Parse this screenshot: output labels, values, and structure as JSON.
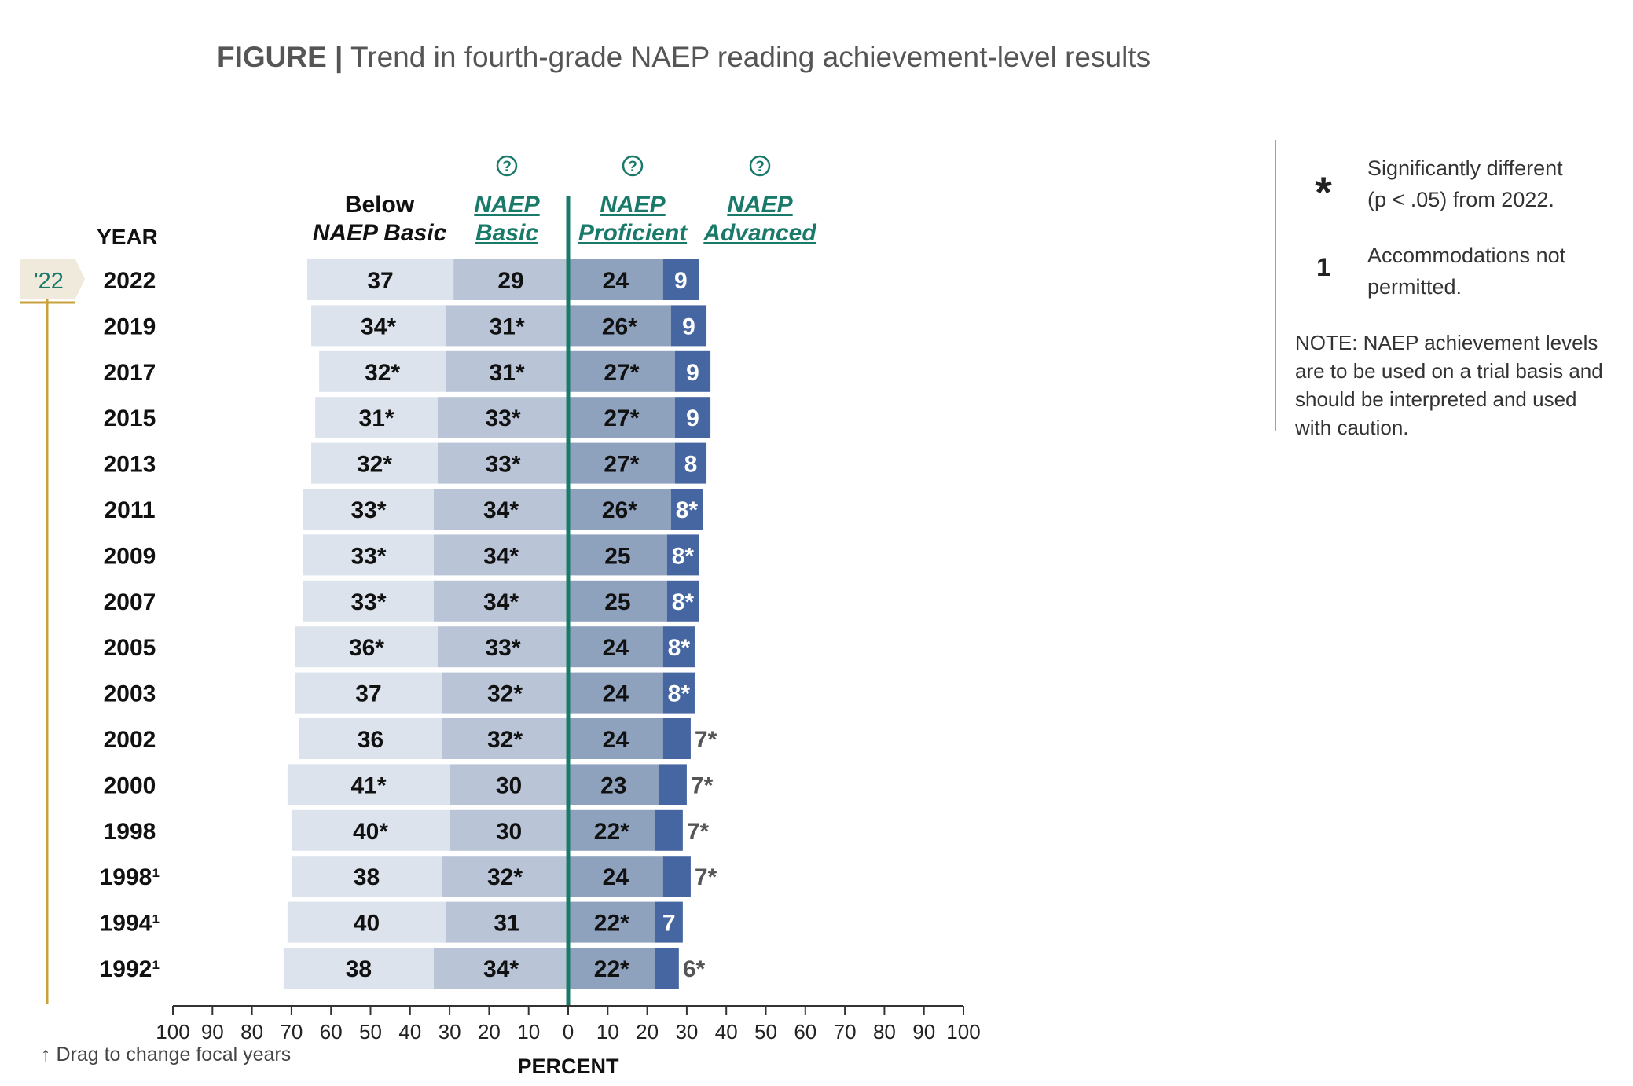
{
  "title_lead": "FIGURE |",
  "title_rest": "Trend in fourth-grade NAEP reading achievement-level results",
  "help_icon": "question-circle-icon",
  "focal_tag": "'22",
  "drag_hint": "↑ Drag to change focal years",
  "legend": {
    "sig_symbol": "*",
    "sig_text_1": "Significantly different",
    "sig_text_2": "(p < .05) from 2022.",
    "acc_symbol": "1",
    "acc_text_1": "Accommodations not",
    "acc_text_2": "permitted.",
    "note": "NOTE: NAEP achievement levels are to be used on a trial basis and should be interpreted and used with caution."
  },
  "colors": {
    "below_basic": "#dde3ec",
    "basic": "#b9c5d7",
    "proficient": "#8ea1bd",
    "advanced": "#4566a1",
    "axis_line": "#1a7a6a",
    "link": "#1a7a6a",
    "focal_gold": "#c9a13b"
  },
  "chart_data": {
    "type": "bar",
    "orientation": "horizontal-diverging",
    "year_header": "YEAR",
    "xlabel": "PERCENT",
    "xlim": [
      -100,
      100
    ],
    "xticks": [
      "100",
      "90",
      "80",
      "70",
      "60",
      "50",
      "40",
      "30",
      "20",
      "10",
      "0",
      "10",
      "20",
      "30",
      "40",
      "50",
      "60",
      "70",
      "80",
      "90",
      "100"
    ],
    "column_headers": [
      {
        "line1": "Below",
        "line2": "NAEP Basic",
        "link": false
      },
      {
        "line1": "NAEP",
        "line2": "Basic",
        "link": true
      },
      {
        "line1": "NAEP",
        "line2": "Proficient",
        "link": true
      },
      {
        "line1": "NAEP",
        "line2": "Advanced",
        "link": true
      }
    ],
    "categories": [
      "2022",
      "2019",
      "2017",
      "2015",
      "2013",
      "2011",
      "2009",
      "2007",
      "2005",
      "2003",
      "2002",
      "2000",
      "1998",
      "1998¹",
      "1994¹",
      "1992¹"
    ],
    "series": [
      {
        "name": "Below NAEP Basic",
        "side": "left",
        "values": [
          37,
          34,
          32,
          31,
          32,
          33,
          33,
          33,
          36,
          37,
          36,
          41,
          40,
          38,
          40,
          38
        ],
        "labels": [
          "37",
          "34*",
          "32*",
          "31*",
          "32*",
          "33*",
          "33*",
          "33*",
          "36*",
          "37",
          "36",
          "41*",
          "40*",
          "38",
          "40",
          "38"
        ]
      },
      {
        "name": "NAEP Basic",
        "side": "left",
        "values": [
          29,
          31,
          31,
          33,
          33,
          34,
          34,
          34,
          33,
          32,
          32,
          30,
          30,
          32,
          31,
          34
        ],
        "labels": [
          "29",
          "31*",
          "31*",
          "33*",
          "33*",
          "34*",
          "34*",
          "34*",
          "33*",
          "32*",
          "32*",
          "30",
          "30",
          "32*",
          "31",
          "34*"
        ]
      },
      {
        "name": "NAEP Proficient",
        "side": "right",
        "values": [
          24,
          26,
          27,
          27,
          27,
          26,
          25,
          25,
          24,
          24,
          24,
          23,
          22,
          24,
          22,
          22
        ],
        "labels": [
          "24",
          "26*",
          "27*",
          "27*",
          "27*",
          "26*",
          "25",
          "25",
          "24",
          "24",
          "24",
          "23",
          "22*",
          "24",
          "22*",
          "22*"
        ]
      },
      {
        "name": "NAEP Advanced",
        "side": "right",
        "values": [
          9,
          9,
          9,
          9,
          8,
          8,
          8,
          8,
          8,
          8,
          7,
          7,
          7,
          7,
          7,
          6
        ],
        "labels": [
          "9",
          "9",
          "9",
          "9",
          "8",
          "8*",
          "8*",
          "8*",
          "8*",
          "8*",
          "7*",
          "7*",
          "7*",
          "7*",
          "7",
          "6*"
        ]
      }
    ]
  }
}
